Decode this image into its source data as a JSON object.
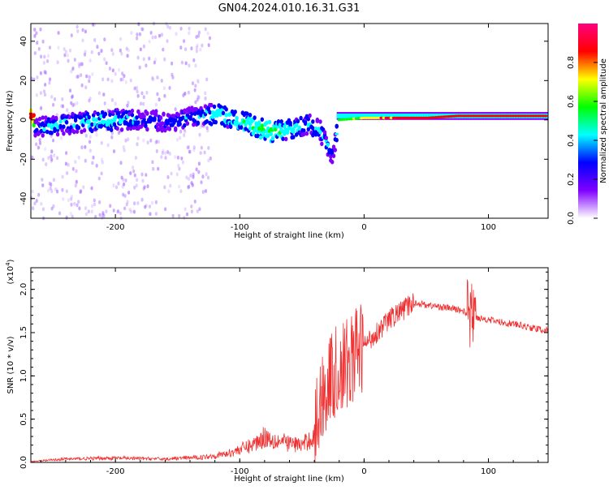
{
  "title": "GN04.2024.010.16.31.G31",
  "chart_data": [
    {
      "type": "heatmap",
      "xlabel": "Height of straight line (km)",
      "ylabel": "Frequency (Hz)",
      "xlim": [
        -268,
        148
      ],
      "ylim": [
        -50,
        49
      ],
      "xticks": [
        -200,
        -100,
        0,
        100
      ],
      "xtick_labels": [
        "-200",
        "-100",
        "0",
        "100"
      ],
      "yticks": [
        -40,
        -20,
        0,
        20,
        40
      ],
      "ytick_labels": [
        "-40",
        "-20",
        "0",
        "20",
        "40"
      ],
      "colorbar": {
        "label": "Normalized spectral amplitude",
        "range": [
          0,
          1
        ],
        "ticks": [
          0.0,
          0.2,
          0.4,
          0.6,
          0.8
        ],
        "tick_labels": [
          "0.0",
          "0.2",
          "0.4",
          "0.6",
          "0.8"
        ],
        "colors": [
          "#ffffff",
          "#8000ff",
          "#0000ff",
          "#00ffff",
          "#00ff00",
          "#ffff00",
          "#ff0000",
          "#ff0080"
        ]
      },
      "ridge": [
        {
          "x": -265,
          "y": -4,
          "amp": 0.35
        },
        {
          "x": -250,
          "y": -3,
          "amp": 0.4
        },
        {
          "x": -235,
          "y": -2,
          "amp": 0.4
        },
        {
          "x": -220,
          "y": -1,
          "amp": 0.45
        },
        {
          "x": -200,
          "y": 0,
          "amp": 0.45
        },
        {
          "x": -180,
          "y": 0,
          "amp": 0.35
        },
        {
          "x": -160,
          "y": -1,
          "amp": 0.3
        },
        {
          "x": -140,
          "y": 1,
          "amp": 0.35
        },
        {
          "x": -120,
          "y": 3,
          "amp": 0.45
        },
        {
          "x": -100,
          "y": 0,
          "amp": 0.5
        },
        {
          "x": -90,
          "y": -3,
          "amp": 0.55
        },
        {
          "x": -75,
          "y": -6,
          "amp": 0.55
        },
        {
          "x": -60,
          "y": -5,
          "amp": 0.45
        },
        {
          "x": -45,
          "y": -2,
          "amp": 0.4
        },
        {
          "x": -35,
          "y": -6,
          "amp": 0.4
        },
        {
          "x": -25,
          "y": -18,
          "amp": 0.3
        },
        {
          "x": -20,
          "y": 0,
          "amp": 0.55
        },
        {
          "x": 0,
          "y": 1,
          "amp": 0.7
        },
        {
          "x": 25,
          "y": 1,
          "amp": 0.8
        },
        {
          "x": 50,
          "y": 1,
          "amp": 0.85
        },
        {
          "x": 75,
          "y": 2,
          "amp": 0.85
        },
        {
          "x": 100,
          "y": 2,
          "amp": 0.85
        },
        {
          "x": 148,
          "y": 2,
          "amp": 0.85
        }
      ]
    },
    {
      "type": "line",
      "xlabel": "Height of straight line (km)",
      "ylabel": "SNR (10 * v/v)",
      "yscale_label": "(x10",
      "yscale_exponent": "4",
      "yscale_close": ")",
      "xlim": [
        -268,
        148
      ],
      "ylim": [
        0,
        2.25
      ],
      "xticks": [
        -200,
        -100,
        0,
        100
      ],
      "xtick_labels": [
        "-200",
        "-100",
        "0",
        "100"
      ],
      "yticks": [
        0,
        0.5,
        1.0,
        1.5,
        2.0
      ],
      "ytick_labels": [
        "0.0",
        "0.5",
        "1.0",
        "1.5",
        "2.0"
      ],
      "series_color": "#f03030",
      "series": [
        {
          "x": [
            -268,
            -240,
            -200,
            -160,
            -130,
            -110,
            -100,
            -90,
            -80,
            -70,
            -60,
            -50,
            -45,
            -40,
            -35,
            -30,
            -25,
            -20,
            -15,
            -10,
            -5,
            0,
            10,
            20,
            30,
            40,
            50,
            60,
            70,
            80,
            85,
            90,
            100,
            110,
            120,
            130,
            140,
            148
          ],
          "y": [
            0.01,
            0.04,
            0.05,
            0.04,
            0.06,
            0.1,
            0.15,
            0.2,
            0.3,
            0.25,
            0.22,
            0.2,
            0.25,
            0.3,
            0.7,
            0.9,
            1.0,
            1.05,
            1.1,
            1.2,
            1.3,
            1.35,
            1.5,
            1.65,
            1.75,
            1.85,
            1.82,
            1.8,
            1.78,
            1.75,
            1.7,
            1.68,
            1.65,
            1.62,
            1.6,
            1.57,
            1.54,
            1.52
          ]
        }
      ]
    }
  ]
}
